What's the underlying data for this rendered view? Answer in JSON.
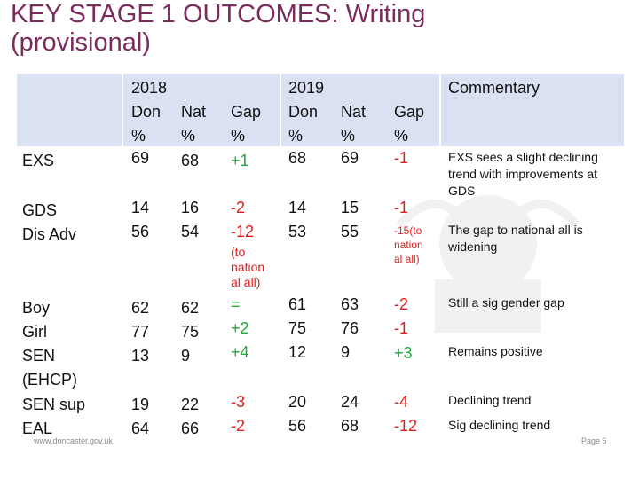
{
  "title": "KEY STAGE 1 OUTCOMES: Writing\n(provisional)",
  "header": {
    "y2018": "2018",
    "y2019": "2019",
    "commentary": "Commentary",
    "don_2018": "Don\n%",
    "nat_2018": "Nat\n%",
    "gap_2018": "Gap\n%",
    "don_2019": "Don\n%",
    "nat_2019": "Nat\n%",
    "gap_2019": "Gap\n%"
  },
  "rows": {
    "exs": {
      "label": "EXS",
      "don18": "69",
      "nat18": "68",
      "gap18": "+1",
      "don19": "68",
      "nat19": "69",
      "gap19": "-1",
      "comment": "EXS sees a slight declining trend with improvements at GDS"
    },
    "gds": {
      "label": "GDS\nDis Adv",
      "don18": "14\n56",
      "nat18": "16\n54",
      "gap18": "-2\n-12",
      "gap18_note": "(to\nnation\nal all)",
      "don19": "14\n53",
      "nat19": "15\n55",
      "gap19": "-1",
      "gap19_note": "-15(to\nnation\nal all)",
      "comment": "The gap to national all is widening"
    },
    "boy": {
      "label": "Boy\nGirl\nSEN\n(EHCP)",
      "don18": "62\n77\n13",
      "nat18": "62\n75\n9",
      "gap18_eq": "=",
      "gap18": "+2\n+4",
      "don19": "61\n75\n12",
      "nat19": "63\n76\n9",
      "gap19a": "-2",
      "gap19b": "-1",
      "gap19c": "+3",
      "comment1": "Still a sig gender gap",
      "comment2": "Remains positive"
    },
    "sen": {
      "label": "SEN sup\nEAL",
      "don18": "19\n64",
      "nat18": "22\n66",
      "gap18": "-3\n-2",
      "don19": "20\n56",
      "nat19": "24\n68",
      "gap19": "-4\n-12",
      "comment1": "Declining trend",
      "comment2": "Sig declining trend"
    }
  },
  "footer": {
    "url": "www.doncaster.gov.uk",
    "page": "Page 6"
  },
  "colors": {
    "title": "#7b2c5d",
    "header_fill": "#d9e1f2",
    "positive": "#22a83a",
    "negative": "#e01e1e"
  }
}
